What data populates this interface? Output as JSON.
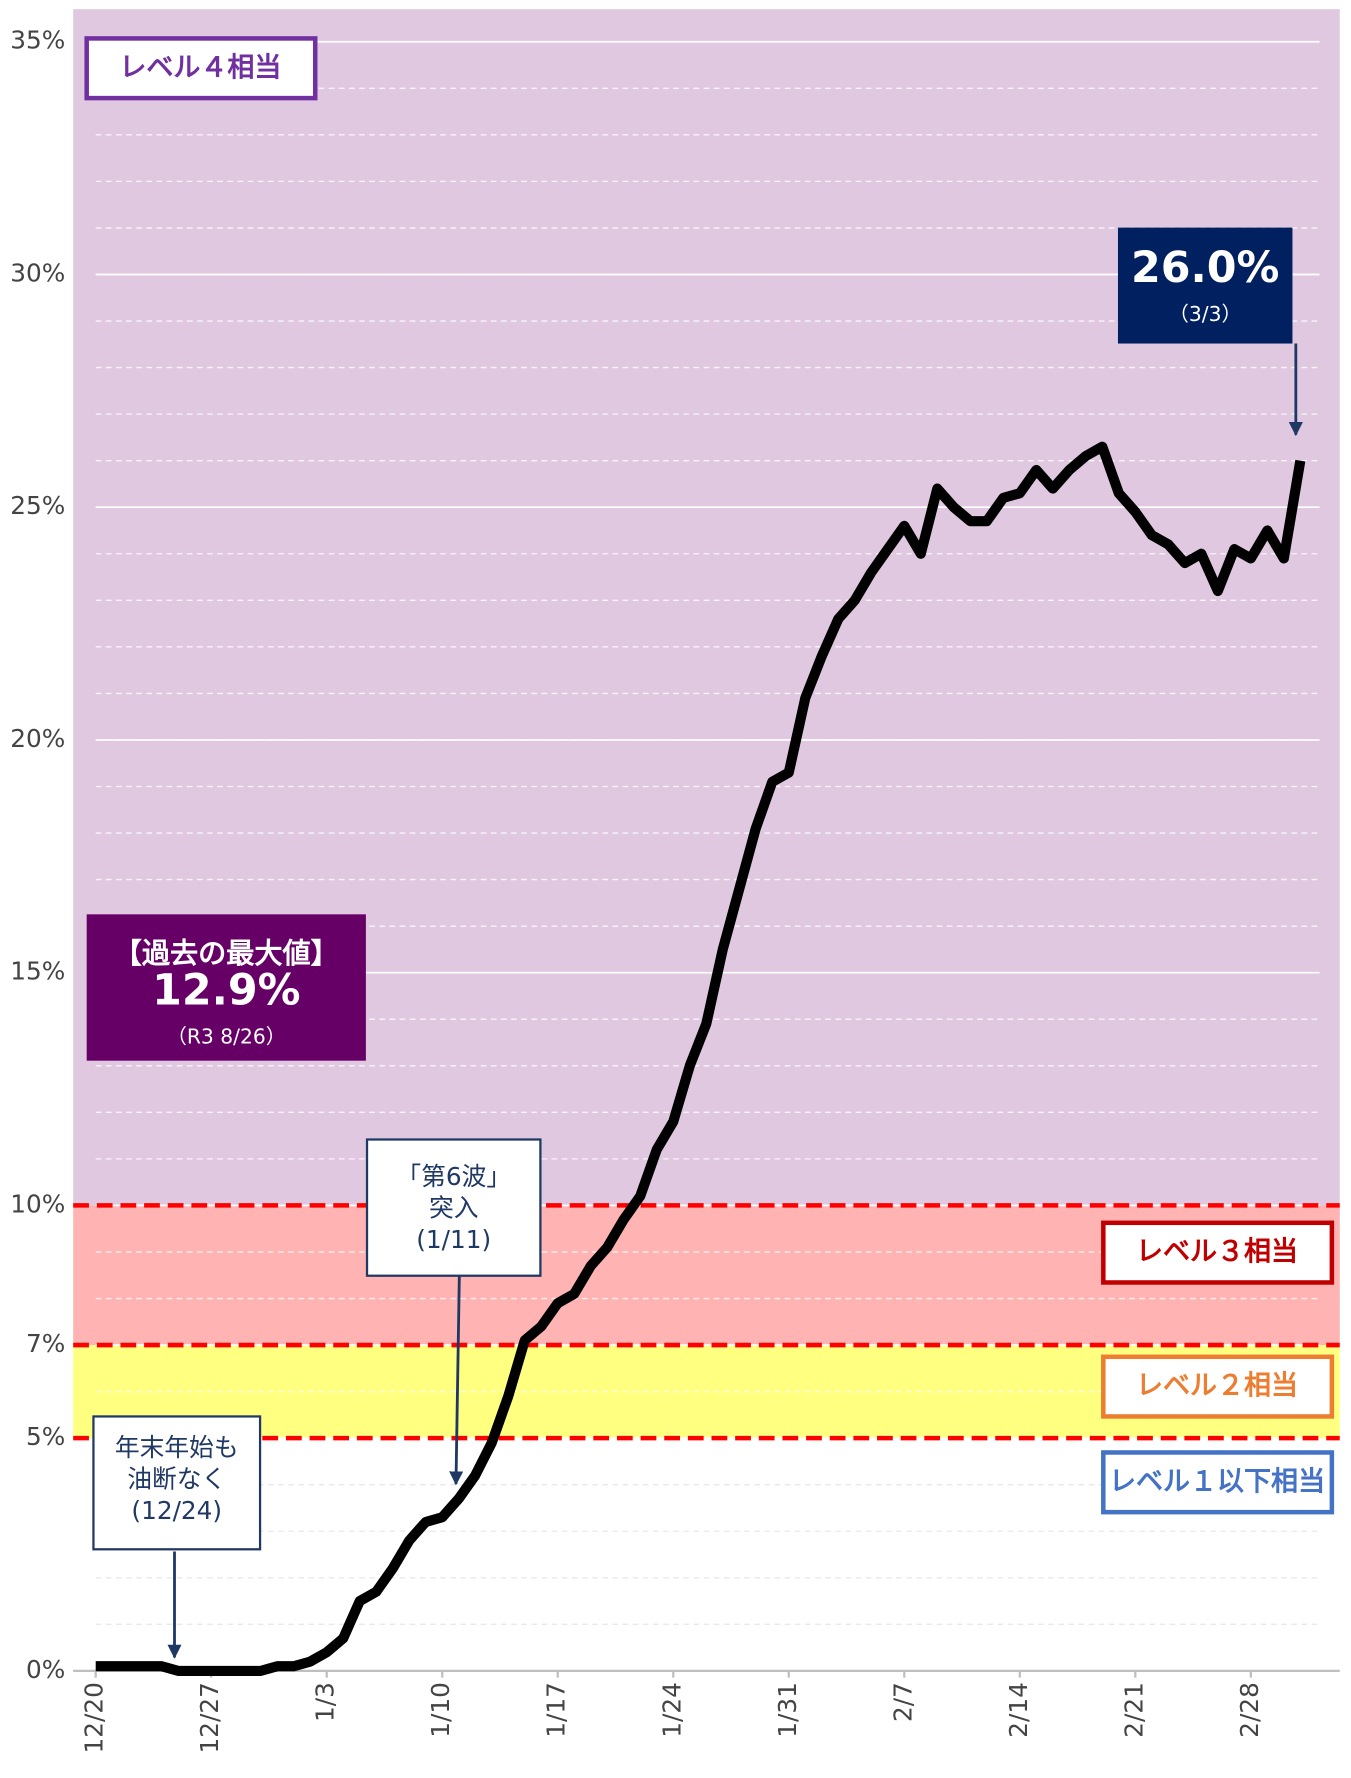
{
  "chart_data": {
    "type": "line",
    "categories": [
      "12/20",
      null,
      null,
      null,
      null,
      null,
      null,
      "12/27",
      null,
      null,
      null,
      null,
      null,
      null,
      "1/3",
      null,
      null,
      null,
      null,
      null,
      null,
      "1/10",
      null,
      null,
      null,
      null,
      null,
      null,
      "1/17",
      null,
      null,
      null,
      null,
      null,
      null,
      "1/24",
      null,
      null,
      null,
      null,
      null,
      null,
      "1/31",
      null,
      null,
      null,
      null,
      null,
      null,
      "2/7",
      null,
      null,
      null,
      null,
      null,
      null,
      "2/14",
      null,
      null,
      null,
      null,
      null,
      null,
      "2/21",
      null,
      null,
      null,
      null,
      null,
      null,
      "2/28",
      null,
      null,
      null
    ],
    "series": [
      {
        "color": "#000000",
        "values": [
          0.1,
          0.1,
          0.1,
          0.1,
          0.1,
          0,
          0,
          0,
          0,
          0,
          0,
          0.1,
          0.1,
          0.2,
          0.4,
          0.7,
          1.5,
          1.7,
          2.2,
          2.8,
          3.2,
          3.3,
          3.7,
          4.2,
          4.9,
          5.9,
          7.1,
          7.4,
          7.9,
          8.1,
          8.7,
          9.1,
          9.7,
          10.2,
          11.2,
          11.8,
          13.0,
          13.9,
          15.5,
          16.8,
          18.1,
          19.1,
          19.3,
          20.9,
          21.8,
          22.6,
          23.0,
          23.6,
          24.1,
          24.6,
          24.0,
          25.4,
          25.0,
          24.7,
          24.7,
          25.2,
          25.3,
          25.8,
          25.4,
          25.8,
          26.1,
          26.3,
          25.3,
          24.9,
          24.4,
          24.2,
          23.8,
          24.0,
          23.2,
          24.1,
          23.9,
          24.5,
          23.9,
          26.0
        ]
      }
    ],
    "ylim": [
      0,
      35.7
    ],
    "yticks": [
      {
        "value": 0,
        "label": "0%"
      },
      {
        "value": 5,
        "label": "5%"
      },
      {
        "value": 7,
        "label": "7%"
      },
      {
        "value": 10,
        "label": "10%"
      },
      {
        "value": 15,
        "label": "15%"
      },
      {
        "value": 20,
        "label": "20%"
      },
      {
        "value": 25,
        "label": "25%"
      },
      {
        "value": 30,
        "label": "30%"
      },
      {
        "value": 35,
        "label": "35%"
      }
    ],
    "minor_grid": 1,
    "bands": [
      {
        "label": "レベル１以下相当",
        "from": 0,
        "to": 5,
        "color": "#ffffff",
        "text_color": "#4472c4"
      },
      {
        "label": "レベル２相当",
        "from": 5,
        "to": 7,
        "color": "#ffff80",
        "text_color": "#ed7d31"
      },
      {
        "label": "レベル３相当",
        "from": 7,
        "to": 10,
        "color": "#ffb3b3",
        "text_color": "#c00000"
      },
      {
        "label": "レベル４相当",
        "from": 10,
        "to": 35.7,
        "color": "#e0c9e0",
        "text_color": "#7030a0"
      }
    ],
    "annotations": [
      {
        "lines": [
          "【過去の最大値】",
          "12.9%",
          "（R3 8/26）"
        ]
      },
      {
        "lines": [
          "26.0%",
          "（3/3）"
        ]
      },
      {
        "lines": [
          "「第6波」",
          "突入",
          "(1/11)"
        ]
      },
      {
        "lines": [
          "年末年始も",
          "油断なく",
          "(12/24)"
        ]
      }
    ]
  }
}
